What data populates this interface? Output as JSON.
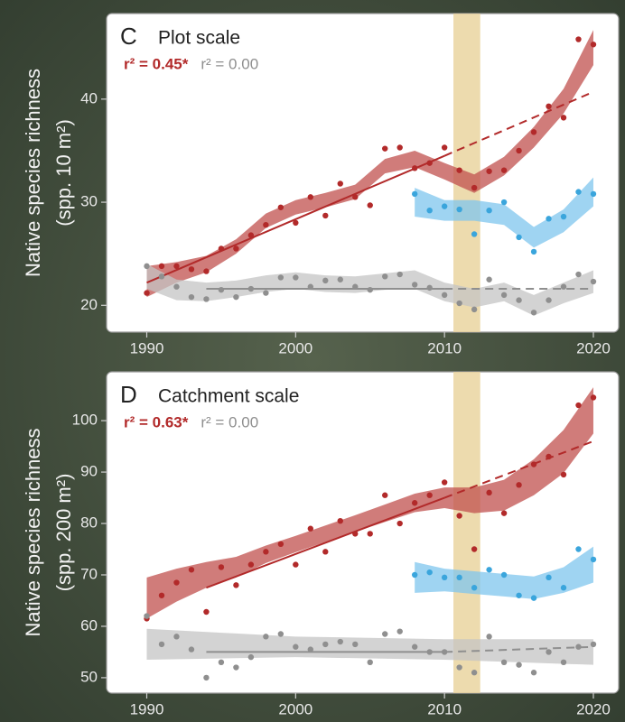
{
  "chart_data": [
    {
      "type": "scatter",
      "panel_label": "C",
      "title": "Plot scale",
      "y_label": [
        "Native species richness",
        "(spp. 10 m²)"
      ],
      "annotations": [
        {
          "text": "r² = 0.45*",
          "color": "#b22a2a"
        },
        {
          "text": "r² = 0.00",
          "color": "#8f8f8f"
        }
      ],
      "xlim": [
        1987.3,
        2021.7
      ],
      "xticks": [
        1990,
        2000,
        2010,
        2020
      ],
      "ylim": [
        17.4,
        48.3
      ],
      "yticks": [
        20,
        30,
        40
      ],
      "highlight_x": [
        2010.6,
        2012.4
      ],
      "highlight_color": "#e9d29a",
      "bands": [
        {
          "color": "#c0504d",
          "x": [
            1990,
            1992,
            1994,
            1996,
            1998,
            2000,
            2002,
            2004,
            2006,
            2008,
            2010,
            2012,
            2014,
            2016,
            2018,
            2020
          ],
          "lower": [
            20.8,
            22.2,
            23.2,
            25.0,
            27.5,
            28.8,
            29.5,
            30.3,
            32.8,
            33.4,
            32.2,
            30.9,
            32.6,
            35.3,
            38.6,
            43.3
          ],
          "upper": [
            23.8,
            24.2,
            24.8,
            26.4,
            28.9,
            30.2,
            30.9,
            31.7,
            34.2,
            35.0,
            33.8,
            32.7,
            34.4,
            37.3,
            41.0,
            46.7
          ]
        },
        {
          "color": "#7fc6ee",
          "x": [
            2008,
            2010,
            2012,
            2014,
            2016,
            2018,
            2020
          ],
          "lower": [
            28.6,
            28.2,
            28.2,
            27.8,
            25.6,
            27.1,
            29.6
          ],
          "upper": [
            31.4,
            30.2,
            30.2,
            29.8,
            27.6,
            29.3,
            32.4
          ]
        },
        {
          "color": "#c4c4c4",
          "x": [
            1990,
            1992,
            1994,
            1996,
            1998,
            2000,
            2002,
            2004,
            2006,
            2008,
            2010,
            2012,
            2014,
            2016,
            2018,
            2020
          ],
          "lower": [
            21.6,
            20.5,
            20.4,
            20.8,
            21.3,
            21.6,
            21.3,
            21.2,
            21.5,
            21.6,
            20.4,
            19.8,
            20.4,
            19.0,
            20.2,
            21.2
          ],
          "upper": [
            24.0,
            22.5,
            22.2,
            22.4,
            22.9,
            23.2,
            22.9,
            22.8,
            23.1,
            23.4,
            22.2,
            21.6,
            22.2,
            21.0,
            22.2,
            23.4
          ]
        }
      ],
      "trend_lines": [
        {
          "color": "#b22a2a",
          "dashed": false,
          "x": [
            1990,
            2010
          ],
          "values": [
            22.2,
            34.5
          ]
        },
        {
          "color": "#b22a2a",
          "dashed": true,
          "x": [
            2010,
            2020
          ],
          "values": [
            34.5,
            40.7
          ]
        },
        {
          "color": "#8f8f8f",
          "dashed": false,
          "x": [
            1994,
            2010
          ],
          "values": [
            21.6,
            21.6
          ]
        },
        {
          "color": "#8f8f8f",
          "dashed": true,
          "x": [
            2010,
            2020
          ],
          "values": [
            21.6,
            21.6
          ]
        }
      ],
      "series": [
        {
          "color": "#b22a2a",
          "x": [
            1990,
            1991,
            1992,
            1993,
            1994,
            1995,
            1996,
            1997,
            1998,
            1999,
            2000,
            2001,
            2002,
            2003,
            2004,
            2005,
            2006,
            2007,
            2008,
            2009,
            2010,
            2011,
            2012,
            2013,
            2014,
            2015,
            2016,
            2017,
            2018,
            2019,
            2020
          ],
          "values": [
            21.2,
            23.8,
            23.8,
            23.5,
            23.3,
            25.5,
            25.5,
            26.8,
            27.8,
            29.5,
            28.0,
            30.5,
            28.7,
            31.8,
            30.5,
            29.7,
            35.2,
            35.3,
            33.3,
            33.8,
            35.3,
            33.1,
            31.4,
            33.0,
            33.1,
            35.0,
            36.8,
            39.3,
            38.2,
            45.8,
            45.3
          ]
        },
        {
          "color": "#3aa5dc",
          "x": [
            2008,
            2009,
            2010,
            2011,
            2012,
            2013,
            2014,
            2015,
            2016,
            2017,
            2018,
            2019,
            2020
          ],
          "values": [
            30.8,
            29.2,
            29.6,
            29.3,
            26.9,
            29.2,
            30.0,
            26.6,
            25.2,
            28.4,
            28.6,
            31.0,
            30.8
          ]
        },
        {
          "color": "#8f8f8f",
          "x": [
            1990,
            1991,
            1992,
            1993,
            1994,
            1995,
            1996,
            1997,
            1998,
            1999,
            2000,
            2001,
            2002,
            2003,
            2004,
            2005,
            2006,
            2007,
            2008,
            2009,
            2010,
            2011,
            2012,
            2013,
            2014,
            2015,
            2016,
            2017,
            2018,
            2019,
            2020
          ],
          "values": [
            23.8,
            22.8,
            21.8,
            20.8,
            20.6,
            21.5,
            20.8,
            21.6,
            21.2,
            22.7,
            22.7,
            21.8,
            22.4,
            22.5,
            21.8,
            21.5,
            22.8,
            23.0,
            22.0,
            21.7,
            21.0,
            20.2,
            19.6,
            22.5,
            21.0,
            20.5,
            19.3,
            20.5,
            21.8,
            23.0,
            22.3
          ]
        }
      ]
    },
    {
      "type": "scatter",
      "panel_label": "D",
      "title": "Catchment scale",
      "y_label": [
        "Native species richness",
        "(spp. 200 m²)"
      ],
      "annotations": [
        {
          "text": "r² = 0.63*",
          "color": "#b22a2a"
        },
        {
          "text": "r² = 0.00",
          "color": "#8f8f8f"
        }
      ],
      "xlim": [
        1987.3,
        2021.7
      ],
      "xticks": [
        1990,
        2000,
        2010,
        2020
      ],
      "ylim": [
        47,
        109.5
      ],
      "yticks": [
        50,
        60,
        70,
        80,
        90,
        100
      ],
      "highlight_x": [
        2010.6,
        2012.4
      ],
      "highlight_color": "#e9d29a",
      "bands": [
        {
          "color": "#c0504d",
          "x": [
            1990,
            1992,
            1994,
            1996,
            1998,
            2000,
            2002,
            2004,
            2006,
            2008,
            2010,
            2012,
            2014,
            2016,
            2018,
            2020
          ],
          "lower": [
            61.5,
            64.8,
            67.5,
            69.5,
            72.3,
            74.4,
            76.4,
            78.4,
            80.3,
            82.2,
            83.0,
            82.0,
            82.5,
            85.5,
            89.8,
            97.5
          ],
          "upper": [
            69.5,
            71.2,
            72.5,
            73.5,
            75.7,
            77.6,
            79.6,
            81.6,
            83.7,
            85.8,
            87.0,
            87.0,
            88.5,
            92.5,
            98.2,
            106.5
          ]
        },
        {
          "color": "#7fc6ee",
          "x": [
            2008,
            2010,
            2012,
            2014,
            2016,
            2018,
            2020
          ],
          "lower": [
            66.5,
            66.8,
            66.3,
            65.8,
            65.3,
            66.5,
            68.5
          ],
          "upper": [
            72.5,
            71.2,
            70.7,
            70.2,
            69.7,
            71.5,
            75.5
          ]
        },
        {
          "color": "#c4c4c4",
          "x": [
            1990,
            2000,
            2010,
            2020
          ],
          "lower": [
            53.5,
            54.0,
            53.5,
            52.5
          ],
          "upper": [
            59.5,
            58.0,
            57.5,
            57.5
          ]
        }
      ],
      "trend_lines": [
        {
          "color": "#b22a2a",
          "dashed": false,
          "x": [
            1994,
            2010
          ],
          "values": [
            67.5,
            85
          ]
        },
        {
          "color": "#b22a2a",
          "dashed": true,
          "x": [
            2010,
            2020
          ],
          "values": [
            85,
            96
          ]
        },
        {
          "color": "#8f8f8f",
          "dashed": false,
          "x": [
            1994,
            2010
          ],
          "values": [
            55,
            55
          ]
        },
        {
          "color": "#8f8f8f",
          "dashed": true,
          "x": [
            2010,
            2020
          ],
          "values": [
            55,
            56
          ]
        }
      ],
      "series": [
        {
          "color": "#b22a2a",
          "x": [
            1990,
            1991,
            1992,
            1993,
            1994,
            1995,
            1996,
            1997,
            1998,
            1999,
            2000,
            2001,
            2002,
            2003,
            2004,
            2005,
            2006,
            2007,
            2008,
            2009,
            2010,
            2011,
            2012,
            2013,
            2014,
            2015,
            2016,
            2017,
            2018,
            2019,
            2020
          ],
          "values": [
            61.5,
            66,
            68.5,
            71,
            62.8,
            71.5,
            68,
            72,
            74.5,
            76,
            72,
            79,
            74.5,
            80.5,
            78,
            78,
            85.5,
            80,
            84,
            85.5,
            88,
            81.5,
            75,
            86,
            82,
            87.5,
            91.5,
            93,
            89.5,
            103,
            104.5
          ]
        },
        {
          "color": "#3aa5dc",
          "x": [
            2008,
            2009,
            2010,
            2011,
            2012,
            2013,
            2014,
            2015,
            2016,
            2017,
            2018,
            2019,
            2020
          ],
          "values": [
            70,
            70.5,
            69.5,
            69.5,
            67.5,
            71,
            70,
            66,
            65.5,
            69.5,
            67.5,
            75,
            73
          ]
        },
        {
          "color": "#8f8f8f",
          "x": [
            1990,
            1991,
            1992,
            1993,
            1994,
            1995,
            1996,
            1997,
            1998,
            1999,
            2000,
            2001,
            2002,
            2003,
            2004,
            2005,
            2006,
            2007,
            2008,
            2009,
            2010,
            2011,
            2012,
            2013,
            2014,
            2015,
            2016,
            2017,
            2018,
            2019,
            2020
          ],
          "values": [
            62,
            56.5,
            58,
            55.5,
            50,
            53,
            52,
            54,
            58,
            58.5,
            56,
            55.5,
            56.5,
            57,
            56.5,
            53,
            58.5,
            59,
            56,
            55,
            55,
            52,
            51,
            58,
            53,
            52.5,
            51,
            55,
            53,
            56,
            56.5
          ]
        }
      ]
    }
  ]
}
